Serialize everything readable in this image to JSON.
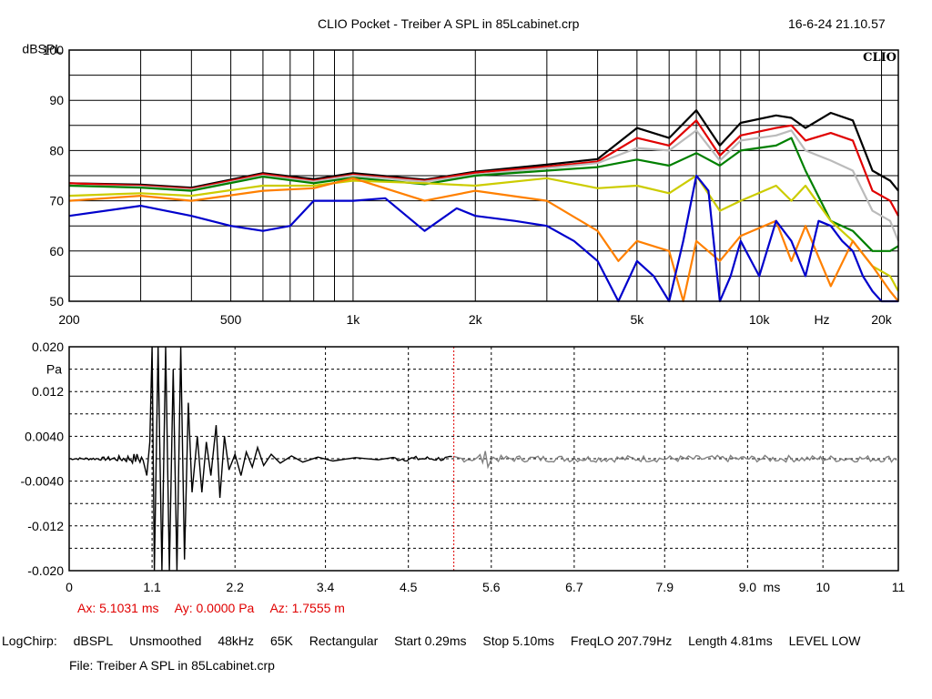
{
  "header": {
    "title": "CLIO Pocket - Treiber A SPL in 85Lcabinet.crp",
    "datetime": "16-6-24 21.10.57",
    "logo": "CLIO"
  },
  "chart_data": [
    {
      "type": "line",
      "xscale": "log",
      "xlim": [
        200,
        22000
      ],
      "ylim": [
        50,
        100
      ],
      "ylabel": "dBSPL",
      "xunit_label": "Hz",
      "x_tick_labels": [
        "200",
        "500",
        "1k",
        "2k",
        "5k",
        "10k",
        "20k"
      ],
      "x_tick_values": [
        200,
        500,
        1000,
        2000,
        5000,
        10000,
        20000
      ],
      "y_ticks": [
        50,
        60,
        70,
        80,
        90,
        100
      ],
      "grid": true,
      "series": [
        {
          "color": "#000000",
          "points": [
            [
              200,
              73.5
            ],
            [
              300,
              73.2
            ],
            [
              400,
              72.6
            ],
            [
              600,
              75.5
            ],
            [
              800,
              74.3
            ],
            [
              1000,
              75.5
            ],
            [
              1500,
              74.2
            ],
            [
              2000,
              75.8
            ],
            [
              3000,
              77.2
            ],
            [
              4000,
              78.3
            ],
            [
              5000,
              84.5
            ],
            [
              6000,
              82.5
            ],
            [
              7000,
              88
            ],
            [
              8000,
              81
            ],
            [
              9000,
              85.5
            ],
            [
              11000,
              87
            ],
            [
              12000,
              86.5
            ],
            [
              13000,
              84.5
            ],
            [
              15000,
              87.5
            ],
            [
              17000,
              86
            ],
            [
              19000,
              76
            ],
            [
              21000,
              74
            ],
            [
              22000,
              72
            ]
          ]
        },
        {
          "color": "#e00000",
          "points": [
            [
              200,
              73.5
            ],
            [
              300,
              73
            ],
            [
              400,
              72.4
            ],
            [
              600,
              75.3
            ],
            [
              800,
              74
            ],
            [
              1000,
              75.2
            ],
            [
              1500,
              74
            ],
            [
              2000,
              75.6
            ],
            [
              3000,
              76.8
            ],
            [
              4000,
              77.8
            ],
            [
              5000,
              82.5
            ],
            [
              6000,
              81
            ],
            [
              7000,
              86
            ],
            [
              8000,
              79
            ],
            [
              9000,
              83
            ],
            [
              11000,
              84.5
            ],
            [
              12000,
              85
            ],
            [
              13000,
              82
            ],
            [
              15000,
              83.5
            ],
            [
              17000,
              82
            ],
            [
              19000,
              72
            ],
            [
              21000,
              70
            ],
            [
              22000,
              67
            ]
          ]
        },
        {
          "color": "#bbbbbb",
          "points": [
            [
              200,
              73
            ],
            [
              300,
              72.8
            ],
            [
              400,
              72.2
            ],
            [
              600,
              75
            ],
            [
              800,
              73.8
            ],
            [
              1000,
              75
            ],
            [
              1500,
              73.8
            ],
            [
              2000,
              75.2
            ],
            [
              3000,
              76.5
            ],
            [
              4000,
              77.5
            ],
            [
              5000,
              80.5
            ],
            [
              6000,
              80
            ],
            [
              7000,
              84
            ],
            [
              8000,
              78
            ],
            [
              9000,
              82
            ],
            [
              11000,
              83
            ],
            [
              12000,
              84
            ],
            [
              13000,
              80
            ],
            [
              15000,
              78
            ],
            [
              17000,
              76
            ],
            [
              19000,
              68
            ],
            [
              21000,
              66
            ],
            [
              22000,
              62
            ]
          ]
        },
        {
          "color": "#008000",
          "points": [
            [
              200,
              73
            ],
            [
              300,
              72.6
            ],
            [
              400,
              72
            ],
            [
              600,
              74.8
            ],
            [
              800,
              73.5
            ],
            [
              1000,
              74.6
            ],
            [
              1500,
              73.3
            ],
            [
              2000,
              75
            ],
            [
              3000,
              76
            ],
            [
              4000,
              76.7
            ],
            [
              5000,
              78.2
            ],
            [
              6000,
              77
            ],
            [
              7000,
              79.5
            ],
            [
              8000,
              77
            ],
            [
              9000,
              80
            ],
            [
              11000,
              81
            ],
            [
              12000,
              82.5
            ],
            [
              13000,
              76
            ],
            [
              15000,
              66
            ],
            [
              17000,
              64
            ],
            [
              19000,
              60
            ],
            [
              21000,
              60
            ],
            [
              22000,
              61
            ]
          ]
        },
        {
          "color": "#cccc00",
          "points": [
            [
              200,
              71
            ],
            [
              300,
              71.5
            ],
            [
              400,
              71
            ],
            [
              600,
              73
            ],
            [
              800,
              73
            ],
            [
              1000,
              74
            ],
            [
              1500,
              73.5
            ],
            [
              2000,
              73
            ],
            [
              3000,
              74.5
            ],
            [
              4000,
              72.5
            ],
            [
              5000,
              73
            ],
            [
              6000,
              71.5
            ],
            [
              7000,
              75
            ],
            [
              8000,
              68
            ],
            [
              9000,
              70
            ],
            [
              11000,
              73
            ],
            [
              12000,
              70
            ],
            [
              13000,
              73
            ],
            [
              15000,
              66
            ],
            [
              17000,
              62
            ],
            [
              19000,
              57
            ],
            [
              21000,
              55
            ],
            [
              22000,
              52
            ]
          ]
        },
        {
          "color": "#ff8000",
          "points": [
            [
              200,
              70
            ],
            [
              300,
              71
            ],
            [
              400,
              70
            ],
            [
              600,
              72
            ],
            [
              800,
              72.5
            ],
            [
              1000,
              74.5
            ],
            [
              1500,
              70
            ],
            [
              2000,
              72
            ],
            [
              3000,
              70
            ],
            [
              4000,
              64
            ],
            [
              4500,
              58
            ],
            [
              5000,
              62
            ],
            [
              6000,
              60
            ],
            [
              6500,
              50
            ],
            [
              7000,
              62
            ],
            [
              8000,
              58
            ],
            [
              9000,
              63
            ],
            [
              11000,
              66
            ],
            [
              12000,
              58
            ],
            [
              13000,
              65
            ],
            [
              15000,
              53
            ],
            [
              17000,
              62
            ],
            [
              19000,
              57
            ],
            [
              21000,
              52
            ],
            [
              22000,
              50
            ]
          ]
        },
        {
          "color": "#0000cc",
          "points": [
            [
              200,
              67
            ],
            [
              300,
              69
            ],
            [
              400,
              67
            ],
            [
              500,
              65
            ],
            [
              600,
              64
            ],
            [
              700,
              65
            ],
            [
              800,
              70
            ],
            [
              1000,
              70
            ],
            [
              1200,
              70.5
            ],
            [
              1500,
              64
            ],
            [
              1800,
              68.5
            ],
            [
              2000,
              67
            ],
            [
              2500,
              66
            ],
            [
              3000,
              65
            ],
            [
              3500,
              62
            ],
            [
              4000,
              58
            ],
            [
              4500,
              50
            ],
            [
              5000,
              58
            ],
            [
              5500,
              55
            ],
            [
              6000,
              50
            ],
            [
              6500,
              62
            ],
            [
              7000,
              75
            ],
            [
              7500,
              72
            ],
            [
              8000,
              50
            ],
            [
              8500,
              55
            ],
            [
              9000,
              62
            ],
            [
              10000,
              55
            ],
            [
              11000,
              66
            ],
            [
              12000,
              62
            ],
            [
              13000,
              55
            ],
            [
              14000,
              66
            ],
            [
              15000,
              65
            ],
            [
              16000,
              62
            ],
            [
              17000,
              60
            ],
            [
              18000,
              55
            ],
            [
              19000,
              52
            ],
            [
              20000,
              50
            ],
            [
              22000,
              50
            ]
          ]
        }
      ]
    },
    {
      "type": "line",
      "xlim": [
        0,
        11
      ],
      "ylim": [
        -0.02,
        0.02
      ],
      "ylabel": "Pa",
      "xunit_label": "ms",
      "x_ticks": [
        0,
        1.1,
        2.2,
        3.4,
        4.5,
        5.6,
        6.7,
        7.9,
        9.0,
        10,
        11
      ],
      "x_tick_labels": [
        "0",
        "1.1",
        "2.2",
        "3.4",
        "4.5",
        "5.6",
        "6.7",
        "7.9",
        "9.0",
        "10",
        "11"
      ],
      "y_ticks": [
        0.02,
        0.012,
        0.004,
        -0.004,
        -0.012,
        -0.02
      ],
      "y_tick_labels": [
        "0.020",
        "0.012",
        "0.0040",
        "-0.0040",
        "-0.012",
        "-0.020"
      ],
      "grid": "dashed",
      "cursor_ms": 5.1031,
      "impulse": {
        "windowed_color": "#000000",
        "tail_color": "#808080",
        "points": [
          [
            0,
            0
          ],
          [
            0.6,
            0.0002
          ],
          [
            0.9,
            0.0008
          ],
          [
            0.95,
            -0.0012
          ],
          [
            1.0,
            0.002
          ],
          [
            1.03,
            -0.003
          ],
          [
            1.07,
            0.003
          ],
          [
            1.1,
            0.02
          ],
          [
            1.13,
            -0.02
          ],
          [
            1.18,
            0.02
          ],
          [
            1.23,
            -0.02
          ],
          [
            1.28,
            0.02
          ],
          [
            1.33,
            -0.02
          ],
          [
            1.38,
            0.016
          ],
          [
            1.43,
            -0.02
          ],
          [
            1.48,
            0.02
          ],
          [
            1.53,
            -0.018
          ],
          [
            1.58,
            0.01
          ],
          [
            1.63,
            -0.006
          ],
          [
            1.7,
            0.004
          ],
          [
            1.76,
            -0.006
          ],
          [
            1.82,
            0.003
          ],
          [
            1.88,
            -0.003
          ],
          [
            1.95,
            0.006
          ],
          [
            2.0,
            -0.007
          ],
          [
            2.06,
            0.004
          ],
          [
            2.12,
            -0.002
          ],
          [
            2.2,
            0.0008
          ],
          [
            2.28,
            -0.003
          ],
          [
            2.35,
            0.0012
          ],
          [
            2.43,
            -0.0015
          ],
          [
            2.5,
            0.002
          ],
          [
            2.58,
            -0.0012
          ],
          [
            2.68,
            0.0008
          ],
          [
            2.8,
            -0.0008
          ],
          [
            2.95,
            0.0005
          ],
          [
            3.1,
            -0.0006
          ],
          [
            3.3,
            0.0003
          ],
          [
            3.5,
            -0.0004
          ],
          [
            3.8,
            0.0002
          ],
          [
            4.1,
            -0.0002
          ],
          [
            4.4,
            0.0001
          ],
          [
            4.8,
            -0.0001
          ],
          [
            5.1,
            0
          ]
        ]
      }
    }
  ],
  "cursor": {
    "ax": "Ax: 5.1031 ms",
    "ay": "Ay: 0.0000 Pa",
    "az": "Az: 1.7555 m"
  },
  "status": {
    "items": [
      "LogChirp:",
      "dBSPL",
      "Unsmoothed",
      "48kHz",
      "65K",
      "Rectangular",
      "Start 0.29ms",
      "Stop 5.10ms",
      "FreqLO 207.79Hz",
      "Length 4.81ms",
      "LEVEL LOW"
    ],
    "file": "File: Treiber A SPL in 85Lcabinet.crp"
  }
}
